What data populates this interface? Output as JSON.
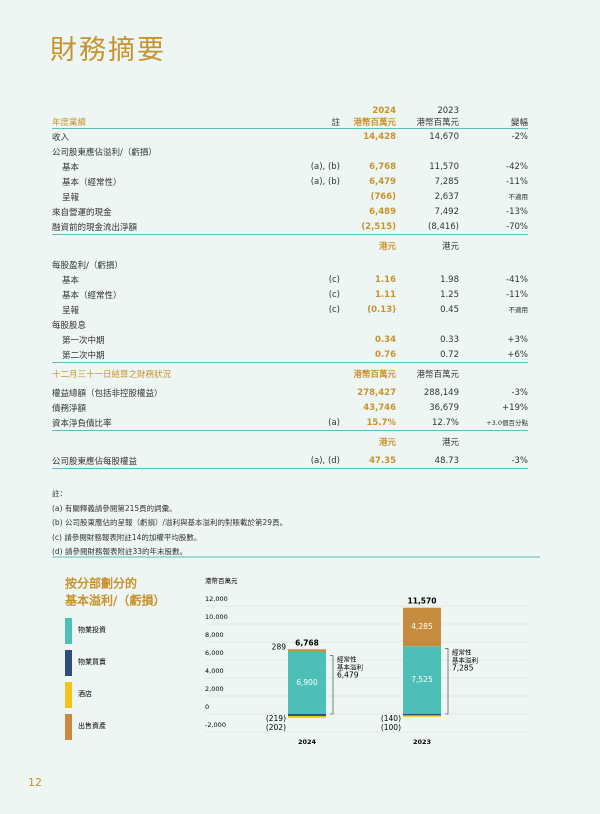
{
  "header": {
    "title": "財務摘要"
  },
  "table": {
    "head": [
      "年度業績",
      "註",
      "2024",
      "港幣百萬元",
      "2023",
      "港幣百萬元",
      "變幅"
    ],
    "rows": [
      [
        "收入",
        null,
        "14,428",
        "14,670",
        "-2%"
      ],
      [
        "公司股東應佔溢利/（虧損）",
        null,
        null,
        null,
        null
      ],
      [
        "基本",
        "(a), (b)",
        "6,768",
        "11,570",
        "-42%"
      ],
      [
        "基本（經常性）",
        "(a), (b)",
        "6,479",
        "7,285",
        "-11%"
      ],
      [
        "呈報",
        null,
        "(766)",
        "2,637",
        "不適用"
      ],
      [
        "來自營運的現金",
        null,
        "6,489",
        "7,492",
        "-13%"
      ],
      [
        "融資前的現金流出淨額",
        null,
        "(2,515)",
        "(8,416)",
        "-70%"
      ],
      [
        null,
        null,
        "港元",
        "港元",
        null
      ],
      [
        "每股盈利/（虧損）",
        null,
        null,
        null,
        null
      ],
      [
        "基本",
        "(c)",
        "1.16",
        "1.98",
        "-41%"
      ],
      [
        "基本（經常性）",
        "(c)",
        "1.11",
        "1.25",
        "-11%"
      ],
      [
        "呈報",
        "(c)",
        "(0.13)",
        "0.45",
        "不適用"
      ],
      [
        "每股股息",
        null,
        null,
        null,
        null
      ],
      [
        "第一次中期",
        null,
        "0.34",
        "0.33",
        "+3%"
      ],
      [
        "第二次中期",
        null,
        "0.76",
        "0.72",
        "+6%"
      ],
      [
        "十二月三十一日結算之財務狀況",
        null,
        "港幣百萬元",
        "港幣百萬元",
        null
      ],
      [
        "權益總額（包括非控股權益）",
        null,
        "278,427",
        "288,149",
        "-3%"
      ],
      [
        "債務淨額",
        null,
        "43,746",
        "36,679",
        "+19%"
      ],
      [
        "資本淨負債比率",
        "(a)",
        "15.7%",
        "12.7%",
        "+3.0個百分點"
      ],
      [
        null,
        null,
        "港元",
        "港元",
        null
      ],
      [
        "公司股東應佔每股權益",
        "(a), (d)",
        "47.35",
        "48.73",
        "-3%"
      ]
    ]
  },
  "notes": {
    "title": "註：",
    "items": [
      "(a) 有關釋義請參閱第215頁的詞彙。",
      "(b) 公司股東應佔的呈報（虧損）/溢利與基本溢利的對賬載於第29頁。",
      "(c) 請參閱財務報表附註14的加權平均股數。",
      "(d) 請參閱財務報表附註33的年末股數。"
    ]
  },
  "chart_data": {
    "type": "bar",
    "stacked": true,
    "title": [
      "按分部劃分的",
      "基本溢利/（虧損）"
    ],
    "y_label": "港幣百萬元",
    "categories": [
      "2024",
      "2023"
    ],
    "series": [
      {
        "name": "物業投資",
        "color": "#4dbfb7",
        "values": [
          6900,
          7525
        ],
        "value_labels": [
          "6,900",
          "7,525"
        ]
      },
      {
        "name": "物業買賣",
        "color": "#2f4d7c",
        "values": [
          -219,
          -140
        ],
        "value_labels": [
          "(219)",
          "(140)"
        ]
      },
      {
        "name": "酒店",
        "color": "#f0c419",
        "values": [
          -202,
          -100
        ],
        "value_labels": [
          "(202)",
          "(100)"
        ]
      },
      {
        "name": "出售資產",
        "color": "#c68b3e",
        "values": [
          289,
          4285
        ],
        "value_labels": [
          "289",
          "4,285"
        ]
      }
    ],
    "totals": {
      "values": [
        6768,
        11570
      ],
      "value_labels": [
        "6,768",
        "11,570"
      ]
    },
    "annotations": [
      {
        "lines": [
          "經常性",
          "基本溢利"
        ],
        "value": 6479,
        "value_label": "6,479"
      },
      {
        "lines": [
          "經常性",
          "基本溢利"
        ],
        "value": 7285,
        "value_label": "7,285"
      }
    ],
    "ylim": [
      -2000,
      12000
    ],
    "yticks": [
      {
        "value": -2000,
        "label": "-2,000"
      },
      0,
      {
        "value": 2000,
        "label": "2,000"
      },
      {
        "value": 4000,
        "label": "4,000"
      },
      {
        "value": 6000,
        "label": "6,000"
      },
      {
        "value": 8000,
        "label": "8,000"
      },
      {
        "value": 10000,
        "label": "10,000"
      },
      {
        "value": 12000,
        "label": "12,000"
      }
    ],
    "grid": true
  },
  "footer": {
    "page": "12"
  }
}
